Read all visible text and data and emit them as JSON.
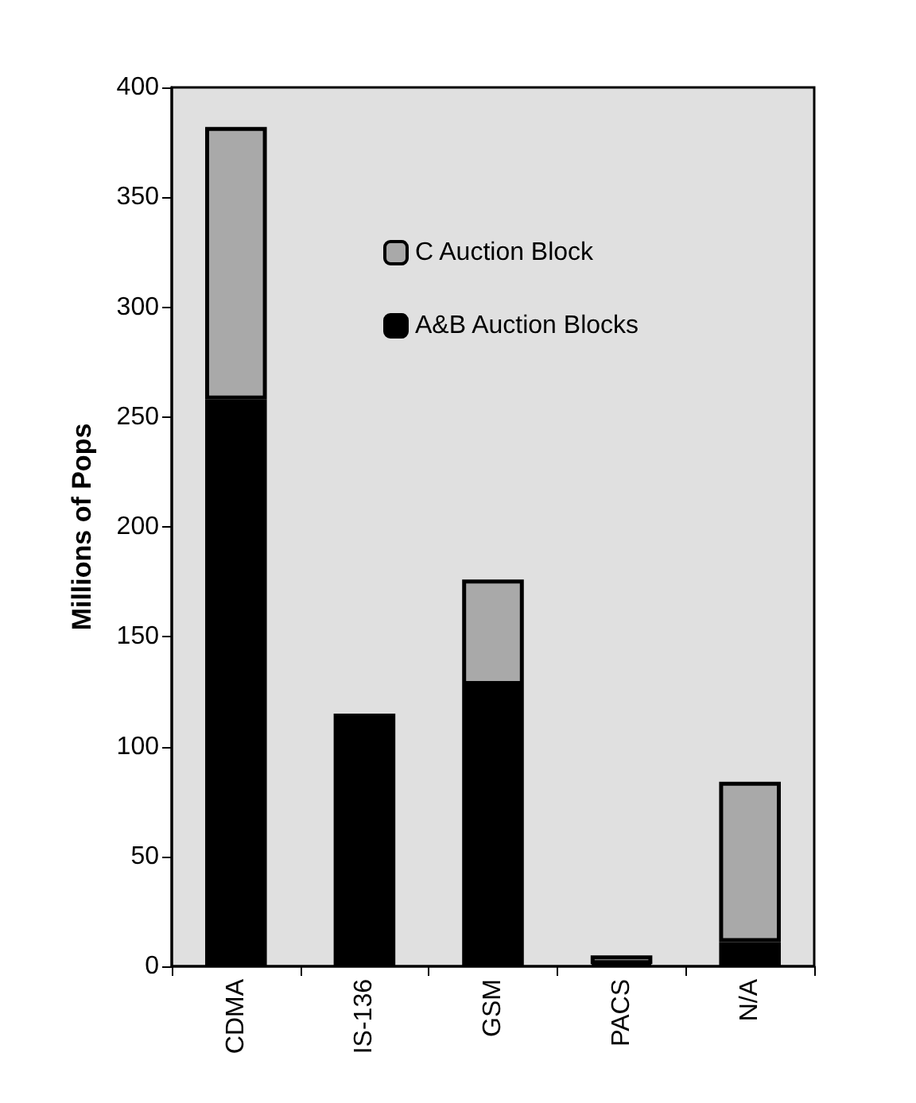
{
  "chart_data": {
    "type": "bar",
    "stacked": true,
    "ylabel": "Millions of Pops",
    "categories": [
      "CDMA",
      "IS-136",
      "GSM",
      "PACS",
      "N/A"
    ],
    "series": [
      {
        "name": "A&B Auction Blocks",
        "color": "#000000",
        "values": [
          258,
          115,
          128,
          1,
          11
        ]
      },
      {
        "name": "C Auction Block",
        "color": "#a9a9a9",
        "values": [
          124,
          null,
          48,
          4,
          73
        ]
      }
    ],
    "ylim": [
      0,
      400
    ],
    "yticks": [
      0,
      50,
      100,
      150,
      200,
      250,
      300,
      350,
      400
    ],
    "grid": false,
    "legend": "top"
  }
}
